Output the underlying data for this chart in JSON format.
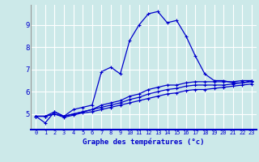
{
  "title": "Graphe des températures (°c)",
  "bg_color": "#cce9e9",
  "line_color": "#0000cc",
  "grid_color": "#ffffff",
  "xlim": [
    -0.5,
    23.5
  ],
  "ylim": [
    4.3,
    9.9
  ],
  "yticks": [
    5,
    6,
    7,
    8,
    9
  ],
  "xticks": [
    0,
    1,
    2,
    3,
    4,
    5,
    6,
    7,
    8,
    9,
    10,
    11,
    12,
    13,
    14,
    15,
    16,
    17,
    18,
    19,
    20,
    21,
    22,
    23
  ],
  "series": [
    [
      4.9,
      4.6,
      5.1,
      4.9,
      5.2,
      5.3,
      5.4,
      6.9,
      7.1,
      6.8,
      8.3,
      9.0,
      9.5,
      9.6,
      9.1,
      9.2,
      8.5,
      7.6,
      6.8,
      6.5,
      6.5,
      6.4,
      6.4,
      6.5
    ],
    [
      4.9,
      4.9,
      5.1,
      4.9,
      5.0,
      5.1,
      5.2,
      5.4,
      5.5,
      5.6,
      5.8,
      5.9,
      6.1,
      6.2,
      6.3,
      6.3,
      6.4,
      6.45,
      6.45,
      6.45,
      6.45,
      6.45,
      6.5,
      6.5
    ],
    [
      4.9,
      4.9,
      5.0,
      4.9,
      5.0,
      5.1,
      5.2,
      5.3,
      5.4,
      5.5,
      5.65,
      5.75,
      5.9,
      6.0,
      6.1,
      6.15,
      6.25,
      6.3,
      6.3,
      6.3,
      6.3,
      6.35,
      6.4,
      6.45
    ],
    [
      4.9,
      4.9,
      5.0,
      4.85,
      4.95,
      5.05,
      5.1,
      5.2,
      5.3,
      5.4,
      5.5,
      5.6,
      5.7,
      5.8,
      5.9,
      5.95,
      6.05,
      6.1,
      6.1,
      6.15,
      6.2,
      6.25,
      6.3,
      6.35
    ]
  ]
}
